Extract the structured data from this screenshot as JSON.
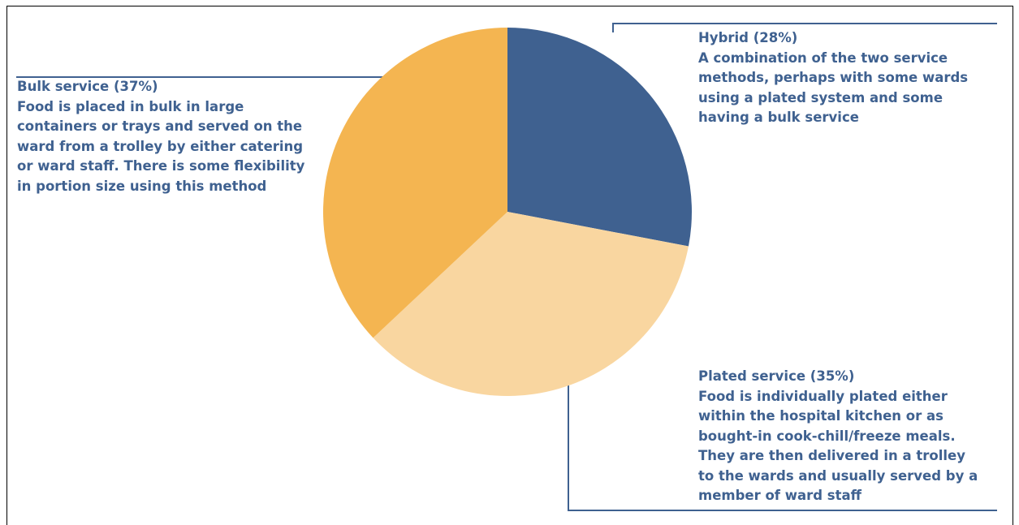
{
  "chart_data": {
    "type": "pie",
    "title": "",
    "slices": [
      {
        "key": "hybrid",
        "label": "Hybrid (28%)",
        "value": 28,
        "color": "#3f6190",
        "description": "A combination of the two service methods, perhaps with some wards using a plated system and some having a bulk service"
      },
      {
        "key": "plated",
        "label": "Plated service (35%)",
        "value": 35,
        "color": "#f9d6a0",
        "description": "Food is individually plated either within the hospital kitchen or as bought-in cook-chill/freeze meals. They are then delivered in a trolley to the wards and usually served by a member of ward staff"
      },
      {
        "key": "bulk",
        "label": "Bulk service (37%)",
        "value": 37,
        "color": "#f4b551",
        "description": "Food is placed in bulk in large containers or trays and served on the ward from a trolley by either catering or ward staff. There is some flexibility in portion size using this method"
      }
    ],
    "label_color": "#3f6190",
    "legend": "none"
  }
}
